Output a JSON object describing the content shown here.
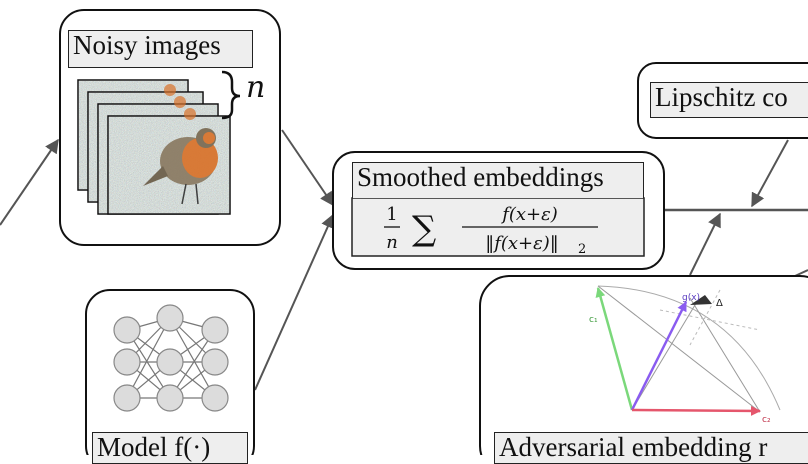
{
  "nodes": {
    "noisy_images": {
      "label": "Noisy images",
      "count_symbol": "n"
    },
    "model": {
      "label": "Model f(·)"
    },
    "smoothed": {
      "label": "Smoothed embeddings",
      "formula": {
        "frac_num": "1",
        "frac_den": "n",
        "sum": "∑",
        "num": "f(x+ε)",
        "den": "‖f(x+ε)‖",
        "den_sub": "2"
      }
    },
    "lipschitz": {
      "label": "Lipschitz co"
    },
    "adversarial": {
      "label": "Adversarial embedding r",
      "vector_labels": {
        "g": "g(x)",
        "delta": "Δ",
        "c1": "c₁",
        "c2": "c₂"
      }
    }
  },
  "colors": {
    "stroke": "#111111",
    "label_bg": "#eeeeee",
    "arrow": "#555555",
    "green": "#7bd87b",
    "purple": "#8a5cf0",
    "red": "#e5566c"
  }
}
